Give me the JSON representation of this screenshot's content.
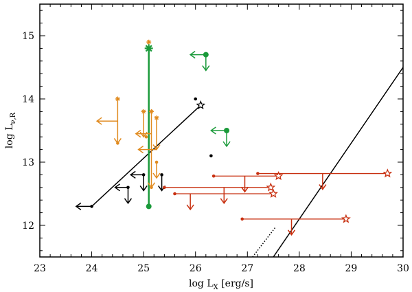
{
  "chart_data": {
    "type": "scatter",
    "title": "",
    "xlabel_main": "log L",
    "xlabel_sub": "X",
    "xlabel_unit": " [erg/s]",
    "ylabel_main": "log L",
    "ylabel_sub": "ν,R",
    "xlim": [
      23,
      30
    ],
    "ylim": [
      11.5,
      15.5
    ],
    "xticks": [
      "23",
      "24",
      "25",
      "26",
      "27",
      "28",
      "29",
      "30"
    ],
    "yticks": [
      "12",
      "13",
      "14",
      "15"
    ],
    "colors": {
      "black": "#000000",
      "orange": "#e08a1e",
      "green": "#1a9a3a",
      "red": "#c83010"
    },
    "lines": [
      {
        "name": "black-correlation-line",
        "color": "black",
        "style": "solid",
        "points": [
          [
            24.0,
            12.3
          ],
          [
            26.1,
            13.9
          ]
        ]
      },
      {
        "name": "diagonal-line",
        "color": "black",
        "style": "solid",
        "points": [
          [
            27.5,
            11.5
          ],
          [
            30.0,
            14.5
          ]
        ]
      },
      {
        "name": "diagonal-line-dotted",
        "color": "black",
        "style": "dotted",
        "points": [
          [
            27.1,
            11.5
          ],
          [
            27.55,
            11.98
          ]
        ]
      },
      {
        "name": "green-vertical-bar",
        "color": "green",
        "style": "solid",
        "width": 2.5,
        "points": [
          [
            25.1,
            12.3
          ],
          [
            25.1,
            14.8
          ]
        ]
      }
    ],
    "series": [
      {
        "name": "black",
        "color": "black",
        "points": [
          {
            "x": 24.0,
            "y": 12.3,
            "marker": "dot",
            "left": 23.7
          },
          {
            "x": 24.7,
            "y": 12.6,
            "marker": "dot",
            "left": 24.45,
            "down": 12.35
          },
          {
            "x": 25.0,
            "y": 12.8,
            "marker": "dot",
            "left": 24.75,
            "down": 12.55
          },
          {
            "x": 25.35,
            "y": 12.8,
            "marker": "dot",
            "down": 12.55
          },
          {
            "x": 26.0,
            "y": 14.0,
            "marker": "dot"
          },
          {
            "x": 26.3,
            "y": 13.1,
            "marker": "dot"
          },
          {
            "x": 26.1,
            "y": 13.9,
            "marker": "star"
          }
        ]
      },
      {
        "name": "orange",
        "color": "orange",
        "points": [
          {
            "x": 24.5,
            "y": 14.0,
            "marker": "asterisk",
            "down": 13.3
          },
          {
            "x": 24.5,
            "y": 13.3,
            "marker": "dot",
            "left": 24.1,
            "left_y": 13.65
          },
          {
            "x": 25.1,
            "y": 14.9,
            "marker": "asterisk"
          },
          {
            "x": 25.0,
            "y": 13.8,
            "marker": "asterisk",
            "down": 13.4
          },
          {
            "x": 25.15,
            "y": 13.8,
            "marker": "asterisk",
            "down": 12.6,
            "left": 24.85,
            "left_y": 13.45
          },
          {
            "x": 25.25,
            "y": 13.7,
            "marker": "asterisk",
            "down": 13.2,
            "left": 24.9,
            "left_y": 13.2
          },
          {
            "x": 25.15,
            "y": 12.6,
            "marker": "dot"
          },
          {
            "x": 25.25,
            "y": 13.0,
            "marker": "dot",
            "down": 12.75
          },
          {
            "x": 25.05,
            "y": 13.4,
            "marker": "dot"
          }
        ]
      },
      {
        "name": "green",
        "color": "green",
        "points": [
          {
            "x": 25.1,
            "y": 14.8,
            "marker": "x-cross"
          },
          {
            "x": 25.1,
            "y": 12.3,
            "marker": "dot"
          },
          {
            "x": 26.2,
            "y": 14.7,
            "marker": "dot",
            "left": 25.9,
            "down": 14.45
          },
          {
            "x": 26.6,
            "y": 13.5,
            "marker": "dot",
            "left": 26.3,
            "down": 13.25
          }
        ]
      },
      {
        "name": "red",
        "color": "red",
        "ranges": [
          {
            "x1": 27.2,
            "x2": 29.7,
            "y": 12.82,
            "arrow_x": 28.45
          },
          {
            "x1": 26.35,
            "x2": 27.6,
            "y": 12.78,
            "arrow_x": 26.95
          },
          {
            "x1": 25.4,
            "x2": 27.45,
            "y": 12.6,
            "arrow_x": 26.55
          },
          {
            "x1": 25.6,
            "x2": 27.5,
            "y": 12.5,
            "arrow_x": 25.9
          },
          {
            "x1": 26.9,
            "x2": 28.9,
            "y": 12.1,
            "arrow_x": 27.85
          }
        ]
      }
    ]
  }
}
